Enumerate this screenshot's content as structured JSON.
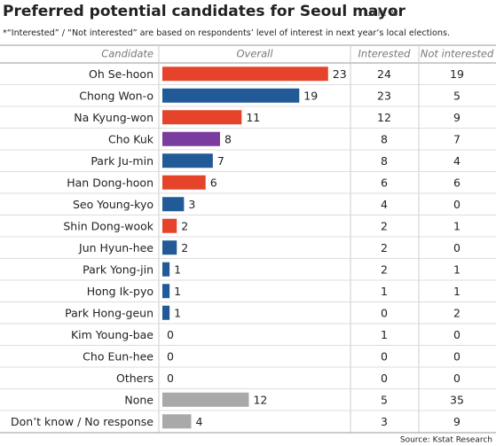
{
  "chart_data": {
    "type": "bar",
    "title": "Preferred potential candidates for Seoul mayor",
    "unit": "Unit: %",
    "note": "*“Interested” / “Not interested” are based on respondents’ level of interest in next year’s local elections.",
    "category_header": "Candidate",
    "categories": [
      "Oh Se-hoon",
      "Chong Won-o",
      "Na Kyung-won",
      "Cho Kuk",
      "Park Ju-min",
      "Han Dong-hoon",
      "Seo Young-kyo",
      "Shin Dong-wook",
      "Jun Hyun-hee",
      "Park Yong-jin",
      "Hong Ik-pyo",
      "Park Hong-geun",
      "Kim Young-bae",
      "Cho Eun-hee",
      "Others",
      "None",
      "Don’t know / No response"
    ],
    "series": [
      {
        "name": "Overall",
        "colors": [
          "#e5442a",
          "#215a96",
          "#e5442a",
          "#7a3c9e",
          "#215a96",
          "#e5442a",
          "#215a96",
          "#e5442a",
          "#215a96",
          "#215a96",
          "#215a96",
          "#215a96",
          "#215a96",
          "#215a96",
          "#215a96",
          "#a9a9a9",
          "#a9a9a9"
        ],
        "values": [
          23,
          19,
          11,
          8,
          7,
          6,
          3,
          2,
          2,
          1,
          1,
          1,
          0,
          0,
          0,
          12,
          4
        ]
      }
    ],
    "xlim": [
      0,
      25
    ],
    "table_columns": [
      {
        "name": "Interested",
        "values": [
          24,
          23,
          12,
          8,
          8,
          6,
          4,
          2,
          2,
          2,
          1,
          0,
          1,
          0,
          0,
          5,
          3
        ]
      },
      {
        "name": "Not interested",
        "values": [
          19,
          5,
          9,
          7,
          4,
          6,
          0,
          1,
          0,
          1,
          1,
          2,
          0,
          0,
          0,
          35,
          9
        ]
      }
    ],
    "source": "Source: Kstat Research"
  }
}
